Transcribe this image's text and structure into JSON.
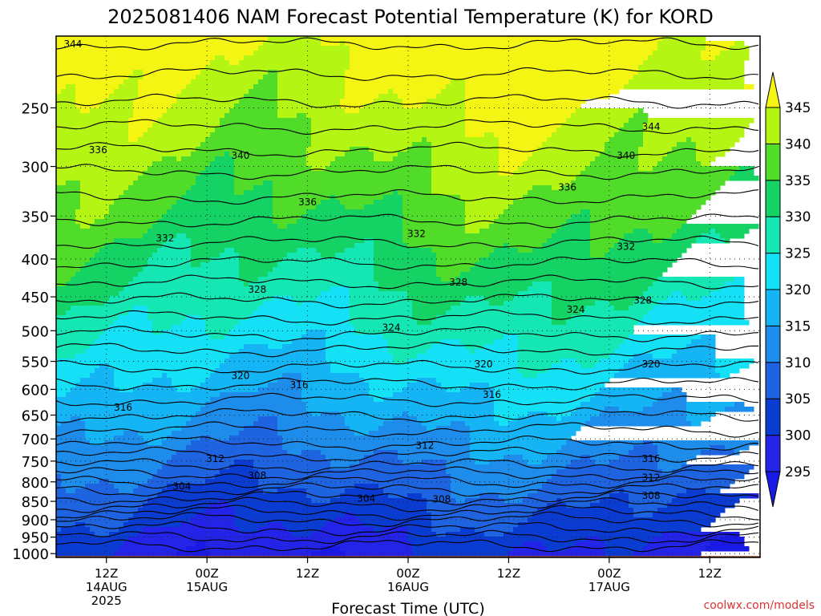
{
  "chart_data": {
    "type": "heatmap",
    "title": "2025081406 NAM Forecast Potential Temperature (K) for KORD",
    "xlabel": "Forecast Time (UTC)",
    "ylabel": "",
    "credit": "coolwx.com/models",
    "x_ticks": [
      {
        "lines": [
          "12Z",
          "14AUG",
          "2025"
        ],
        "hours": 6
      },
      {
        "lines": [
          "00Z",
          "15AUG"
        ],
        "hours": 18
      },
      {
        "lines": [
          "12Z"
        ],
        "hours": 30
      },
      {
        "lines": [
          "00Z",
          "16AUG"
        ],
        "hours": 42
      },
      {
        "lines": [
          "12Z"
        ],
        "hours": 54
      },
      {
        "lines": [
          "00Z",
          "17AUG"
        ],
        "hours": 66
      },
      {
        "lines": [
          "12Z"
        ],
        "hours": 78
      }
    ],
    "xlim_hours": [
      0,
      84
    ],
    "y_ticks": [
      250,
      300,
      350,
      400,
      450,
      500,
      550,
      600,
      650,
      700,
      750,
      800,
      850,
      900,
      950,
      1000
    ],
    "ylim_hPa": [
      1012,
      200
    ],
    "yscale": "log",
    "colorbar": {
      "levels": [
        295,
        300,
        305,
        310,
        315,
        320,
        325,
        330,
        335,
        340,
        345
      ],
      "colors": [
        "#2424e8",
        "#0a3cd2",
        "#1e64e1",
        "#1e8ceb",
        "#14b4f5",
        "#14e1f5",
        "#14e6b4",
        "#14d264",
        "#50dc28",
        "#b4f514",
        "#f5f514"
      ],
      "under_color": "#1a1ae6",
      "over_color": "#f5f514",
      "extend": "both"
    },
    "ground_color": "#a04c28",
    "contour_labels": [
      {
        "text": "344",
        "hours": 2,
        "hPa": 205
      },
      {
        "text": "336",
        "hours": 5,
        "hPa": 285
      },
      {
        "text": "340",
        "hours": 22,
        "hPa": 290
      },
      {
        "text": "336",
        "hours": 30,
        "hPa": 335
      },
      {
        "text": "332",
        "hours": 13,
        "hPa": 375
      },
      {
        "text": "332",
        "hours": 43,
        "hPa": 370
      },
      {
        "text": "336",
        "hours": 61,
        "hPa": 320
      },
      {
        "text": "340",
        "hours": 68,
        "hPa": 290
      },
      {
        "text": "344",
        "hours": 71,
        "hPa": 265
      },
      {
        "text": "332",
        "hours": 68,
        "hPa": 385
      },
      {
        "text": "328",
        "hours": 24,
        "hPa": 440
      },
      {
        "text": "328",
        "hours": 48,
        "hPa": 430
      },
      {
        "text": "324",
        "hours": 62,
        "hPa": 468
      },
      {
        "text": "328",
        "hours": 70,
        "hPa": 455
      },
      {
        "text": "324",
        "hours": 40,
        "hPa": 495
      },
      {
        "text": "320",
        "hours": 22,
        "hPa": 575
      },
      {
        "text": "316",
        "hours": 29,
        "hPa": 592
      },
      {
        "text": "320",
        "hours": 51,
        "hPa": 555
      },
      {
        "text": "320",
        "hours": 71,
        "hPa": 555
      },
      {
        "text": "316",
        "hours": 8,
        "hPa": 635
      },
      {
        "text": "316",
        "hours": 52,
        "hPa": 610
      },
      {
        "text": "312",
        "hours": 19,
        "hPa": 745
      },
      {
        "text": "312",
        "hours": 44,
        "hPa": 715
      },
      {
        "text": "308",
        "hours": 24,
        "hPa": 785
      },
      {
        "text": "304",
        "hours": 15,
        "hPa": 812
      },
      {
        "text": "304",
        "hours": 37,
        "hPa": 842
      },
      {
        "text": "308",
        "hours": 46,
        "hPa": 845
      },
      {
        "text": "316",
        "hours": 71,
        "hPa": 745
      },
      {
        "text": "312",
        "hours": 71,
        "hPa": 790
      },
      {
        "text": "308",
        "hours": 71,
        "hPa": 835
      }
    ]
  }
}
